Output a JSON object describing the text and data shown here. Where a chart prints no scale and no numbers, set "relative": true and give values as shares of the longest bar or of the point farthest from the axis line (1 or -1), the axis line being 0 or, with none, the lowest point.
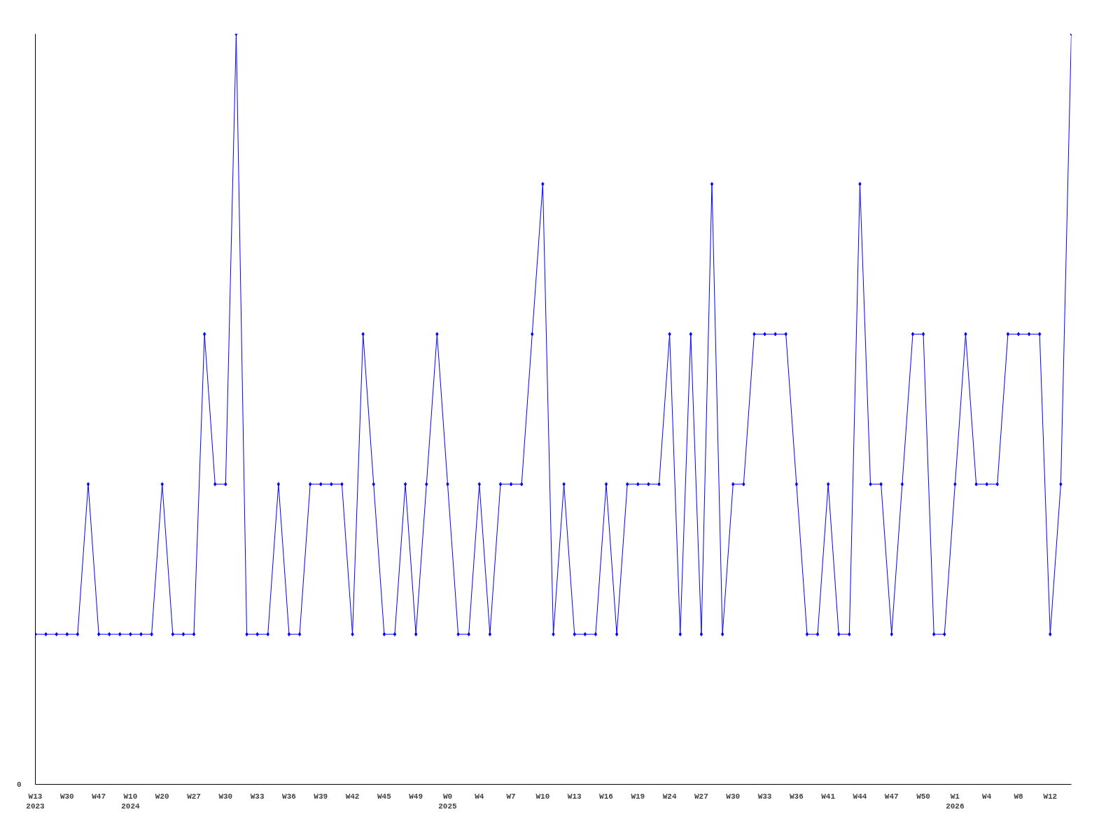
{
  "chart_data": {
    "type": "line",
    "relative": true,
    "marker": "diamond",
    "line_style": "solid",
    "grid": false,
    "annotations": [
      "0"
    ],
    "categories": [
      "W13\n2023",
      null,
      null,
      "W30",
      null,
      null,
      "W47",
      null,
      null,
      "W10\n2024",
      null,
      null,
      "W20",
      null,
      null,
      "W27",
      null,
      null,
      "W30",
      null,
      null,
      "W33",
      null,
      null,
      "W36",
      null,
      null,
      "W39",
      null,
      null,
      "W42",
      null,
      null,
      "W45",
      null,
      null,
      "W49",
      null,
      null,
      "W0\n2025",
      null,
      null,
      "W4",
      null,
      null,
      "W7",
      null,
      null,
      "W10",
      null,
      null,
      "W13",
      null,
      null,
      "W16",
      null,
      null,
      "W19",
      null,
      null,
      "W24",
      null,
      null,
      "W27",
      null,
      null,
      "W30",
      null,
      null,
      "W33",
      null,
      null,
      "W36",
      null,
      null,
      "W41",
      null,
      null,
      "W44",
      null,
      null,
      "W47",
      null,
      null,
      "W50",
      null,
      null,
      "W1\n2026",
      null,
      null,
      "W4",
      null,
      null,
      "W8",
      null,
      null,
      "W12",
      null,
      null
    ],
    "series": [
      {
        "color": "#0000ff",
        "values": [
          0.2,
          0.2,
          0.2,
          0.2,
          0.2,
          0.4,
          0.2,
          0.2,
          0.2,
          0.2,
          0.2,
          0.2,
          0.4,
          0.2,
          0.2,
          0.2,
          0.6,
          0.4,
          0.4,
          1,
          0.2,
          0.2,
          0.2,
          0.4,
          0.2,
          0.2,
          0.4,
          0.4,
          0.4,
          0.4,
          0.2,
          0.6,
          0.4,
          0.2,
          0.2,
          0.4,
          0.2,
          0.4,
          0.6,
          0.4,
          0.2,
          0.2,
          0.4,
          0.2,
          0.4,
          0.4,
          0.4,
          0.6,
          0.8,
          0.2,
          0.4,
          0.2,
          0.2,
          0.2,
          0.4,
          0.2,
          0.4,
          0.4,
          0.4,
          0.4,
          0.6,
          0.2,
          0.6,
          0.2,
          0.8,
          0.2,
          0.4,
          0.4,
          0.6,
          0.6,
          0.6,
          0.6,
          0.4,
          0.2,
          0.2,
          0.4,
          0.2,
          0.2,
          0.8,
          0.4,
          0.4,
          0.2,
          0.4,
          0.6,
          0.6,
          0.2,
          0.2,
          0.4,
          0.6,
          0.4,
          0.4,
          0.4,
          0.6,
          0.6,
          0.6,
          0.6,
          0.2,
          0.4,
          1
        ]
      }
    ]
  }
}
